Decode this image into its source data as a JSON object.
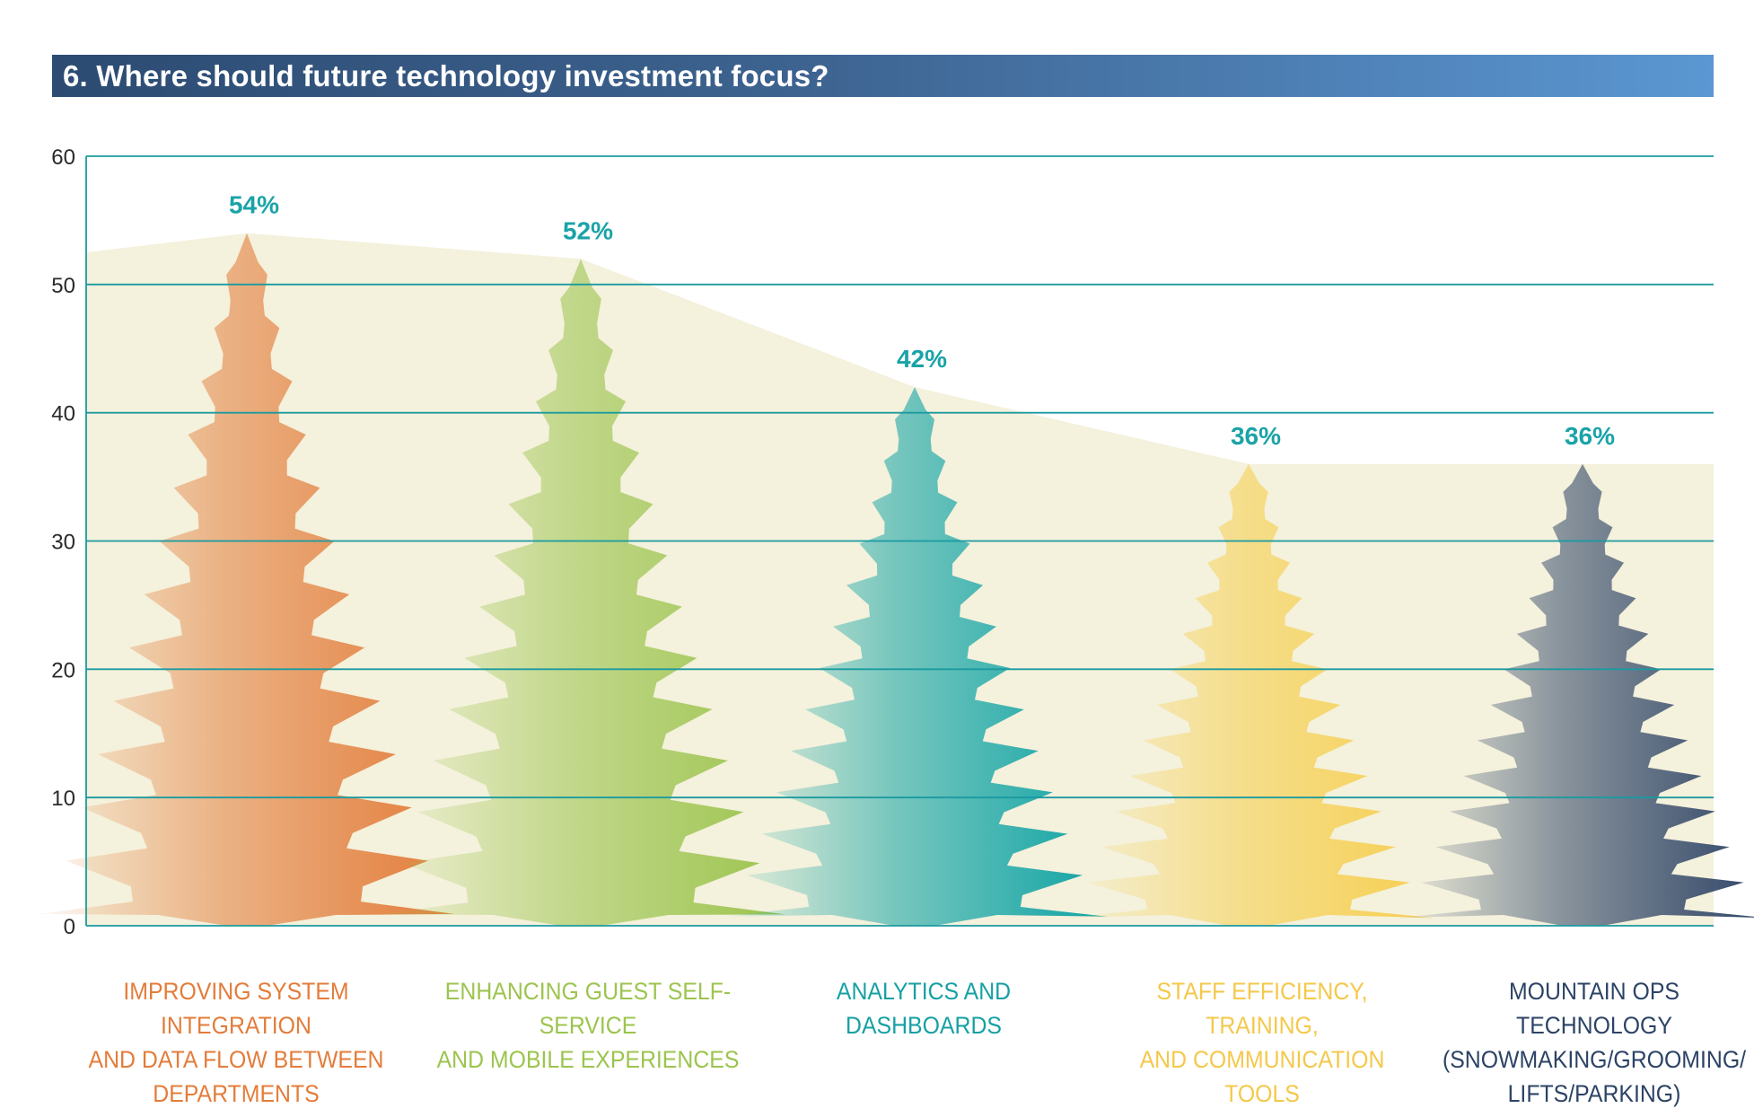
{
  "title": "6. Where should future technology investment focus?",
  "chart_data": {
    "type": "bar",
    "title": "6. Where should future technology investment focus?",
    "xlabel": "",
    "ylabel": "",
    "ylim": [
      0,
      60
    ],
    "yticks": [
      0,
      10,
      20,
      30,
      40,
      50,
      60
    ],
    "grid": true,
    "categories": [
      "IMPROVING SYSTEM INTEGRATION AND DATA FLOW BETWEEN DEPARTMENTS",
      "ENHANCING GUEST SELF-SERVICE AND MOBILE EXPERIENCES",
      "ANALYTICS AND DASHBOARDS",
      "STAFF EFFICIENCY, TRAINING, AND COMMUNICATION TOOLS",
      "MOUNTAIN OPS TECHNOLOGY (SNOWMAKING/GROOMING/ LIFTS/PARKING)"
    ],
    "category_lines": [
      [
        "IMPROVING SYSTEM INTEGRATION",
        "AND DATA FLOW BETWEEN",
        "DEPARTMENTS"
      ],
      [
        "ENHANCING GUEST SELF-SERVICE",
        "AND MOBILE EXPERIENCES"
      ],
      [
        "ANALYTICS AND DASHBOARDS"
      ],
      [
        "STAFF EFFICIENCY, TRAINING,",
        "AND COMMUNICATION TOOLS"
      ],
      [
        "MOUNTAIN OPS TECHNOLOGY",
        "(SNOWMAKING/GROOMING/",
        "LIFTS/PARKING)"
      ]
    ],
    "values": [
      54,
      52,
      42,
      36,
      36
    ],
    "data_labels": [
      "54%",
      "52%",
      "42%",
      "36%",
      "36%"
    ],
    "colors": [
      "#e37c3a",
      "#9cc44e",
      "#0fa3a5",
      "#f6cf50",
      "#2e4466"
    ],
    "label_colors": [
      "#e37c3a",
      "#9cc44e",
      "#16a0a3",
      "#f4c84a",
      "#2c4366"
    ],
    "data_label_color": "#1aa3a8",
    "gridline_color": "#1a9aa0",
    "area_color": "#f4f1dc",
    "mark_shape": "tree"
  }
}
